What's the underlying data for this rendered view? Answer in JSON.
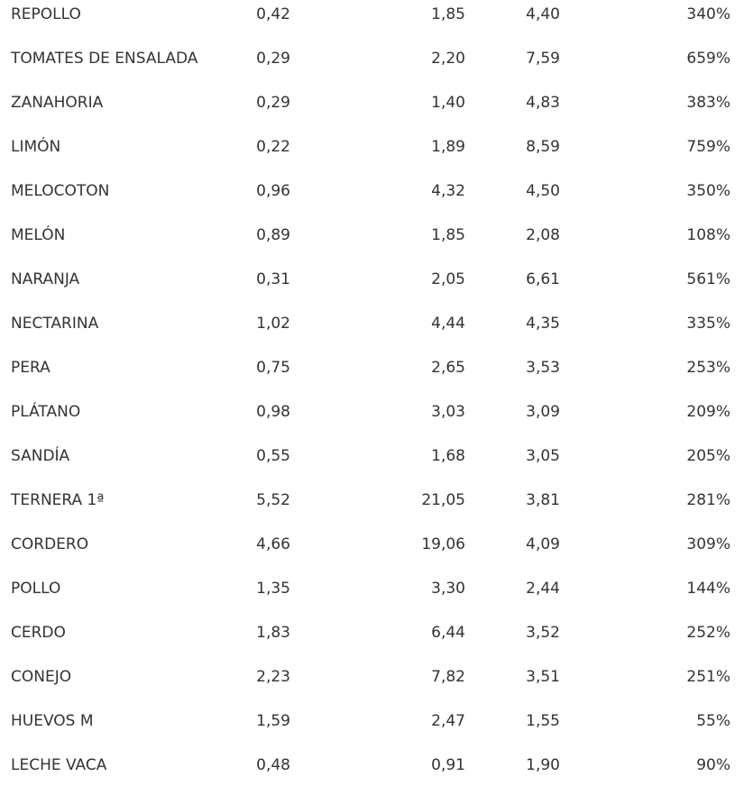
{
  "table": {
    "rows": [
      {
        "product": "REPOLLO",
        "origin": "0,42",
        "dest": "1,85",
        "ratio": "4,40",
        "diff": "340%"
      },
      {
        "product": "TOMATES DE ENSALADA",
        "origin": "0,29",
        "dest": "2,20",
        "ratio": "7,59",
        "diff": "659%"
      },
      {
        "product": "ZANAHORIA",
        "origin": "0,29",
        "dest": "1,40",
        "ratio": "4,83",
        "diff": "383%"
      },
      {
        "product": "LIMÓN",
        "origin": "0,22",
        "dest": "1,89",
        "ratio": "8,59",
        "diff": "759%"
      },
      {
        "product": "MELOCOTON",
        "origin": "0,96",
        "dest": "4,32",
        "ratio": "4,50",
        "diff": "350%"
      },
      {
        "product": "MELÓN",
        "origin": "0,89",
        "dest": "1,85",
        "ratio": "2,08",
        "diff": "108%"
      },
      {
        "product": "NARANJA",
        "origin": "0,31",
        "dest": "2,05",
        "ratio": "6,61",
        "diff": "561%"
      },
      {
        "product": "NECTARINA",
        "origin": "1,02",
        "dest": "4,44",
        "ratio": "4,35",
        "diff": "335%"
      },
      {
        "product": "PERA",
        "origin": "0,75",
        "dest": "2,65",
        "ratio": "3,53",
        "diff": "253%"
      },
      {
        "product": "PLÁTANO",
        "origin": "0,98",
        "dest": "3,03",
        "ratio": "3,09",
        "diff": "209%"
      },
      {
        "product": "SANDÍA",
        "origin": "0,55",
        "dest": "1,68",
        "ratio": "3,05",
        "diff": "205%"
      },
      {
        "product": "TERNERA 1ª",
        "origin": "5,52",
        "dest": "21,05",
        "ratio": "3,81",
        "diff": "281%"
      },
      {
        "product": "CORDERO",
        "origin": "4,66",
        "dest": "19,06",
        "ratio": "4,09",
        "diff": "309%"
      },
      {
        "product": "POLLO",
        "origin": "1,35",
        "dest": "3,30",
        "ratio": "2,44",
        "diff": "144%"
      },
      {
        "product": "CERDO",
        "origin": "1,83",
        "dest": "6,44",
        "ratio": "3,52",
        "diff": "252%"
      },
      {
        "product": "CONEJO",
        "origin": "2,23",
        "dest": "7,82",
        "ratio": "3,51",
        "diff": "251%"
      },
      {
        "product": "HUEVOS M",
        "origin": "1,59",
        "dest": "2,47",
        "ratio": "1,55",
        "diff": "55%"
      },
      {
        "product": "LECHE VACA",
        "origin": "0,48",
        "dest": "0,91",
        "ratio": "1,90",
        "diff": "90%"
      }
    ]
  }
}
